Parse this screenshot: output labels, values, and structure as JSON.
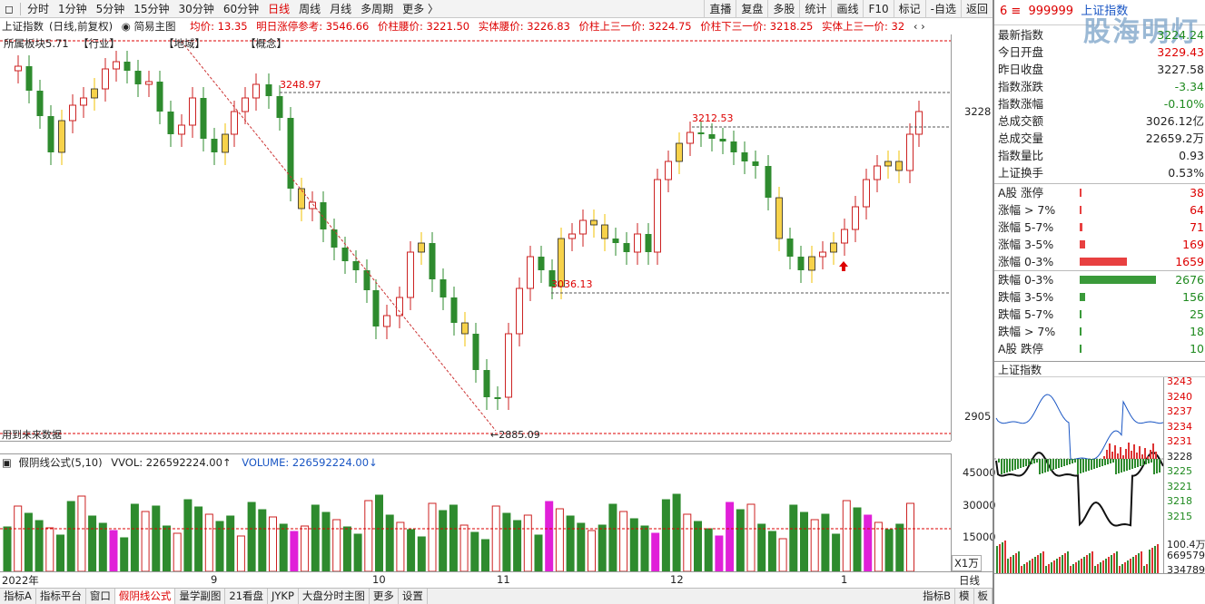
{
  "toolbar": {
    "left_icon": "square-icon",
    "tabs": [
      "分时",
      "1分钟",
      "5分钟",
      "15分钟",
      "30分钟",
      "60分钟",
      "日线",
      "周线",
      "月线",
      "多周期",
      "更多 〉"
    ],
    "active_tab": "日线",
    "right": [
      "直播",
      "复盘",
      "多股",
      "统计",
      "画线",
      "F10",
      "标记",
      "-自选",
      "返回"
    ]
  },
  "info": {
    "index_name": "上证指数",
    "period": "(日线,前复权)",
    "main_chart": "简易主图",
    "avg": "均价: 13.35",
    "next_limit": "明日涨停参考: 3546.66",
    "waist": "价柱腰价: 3221.50",
    "body_waist": "实体腰价: 3226.83",
    "upper": "价柱上三一价: 3224.75",
    "lower": "价柱下三一价: 3218.25",
    "body_upper": "实体上三一价: 32"
  },
  "chart_labels": {
    "top_left": "所属板块5.71",
    "industry": "【行业】",
    "region": "【地域】",
    "concept": "【概念】",
    "p1": "3248.97",
    "p2": "3212.53",
    "p3": "3036.13",
    "p4": "←2885.09",
    "bottom_left": "用到未来数据"
  },
  "y_axis": [
    "3228",
    "2905"
  ],
  "vol": {
    "name": "假阴线公式(5,10)",
    "vvol": "VVOL: 226592224.00↑",
    "volume": "VOLUME: 226592224.00↓",
    "axis": [
      "45000",
      "30000",
      "15000",
      "X1万"
    ]
  },
  "x_axis": [
    "2022年",
    "9",
    "10",
    "11",
    "12",
    "1",
    "日线"
  ],
  "bottom_tabs": [
    "指标A",
    "指标平台",
    "窗口",
    "假阴线公式",
    "量学副图",
    "21看盘",
    "JYKP",
    "大盘分时主图",
    "更多",
    "设置"
  ],
  "bottom_active": "假阴线公式",
  "bottom_right": [
    "指标B",
    "模",
    "板"
  ],
  "side": {
    "code": "999999",
    "name": "上证指数",
    "watermark": "股海明灯",
    "rows": [
      {
        "label": "最新指数",
        "value": "3224.24",
        "color": "#1f8a1f"
      },
      {
        "label": "今日开盘",
        "value": "3229.43",
        "color": "#d00"
      },
      {
        "label": "昨日收盘",
        "value": "3227.58",
        "color": "#222"
      },
      {
        "label": "指数涨跌",
        "value": "-3.34",
        "color": "#1f8a1f"
      },
      {
        "label": "指数涨幅",
        "value": "-0.10%",
        "color": "#1f8a1f"
      },
      {
        "label": "总成交额",
        "value": "3026.12亿",
        "color": "#222"
      },
      {
        "label": "总成交量",
        "value": "22659.2万",
        "color": "#222"
      },
      {
        "label": "指数量比",
        "value": "0.93",
        "color": "#222"
      },
      {
        "label": "上证换手",
        "value": "0.53%",
        "color": "#222"
      }
    ],
    "up_rows": [
      {
        "label": "A股 涨停",
        "value": "38",
        "frac": 0.01
      },
      {
        "label": "涨幅 > 7%",
        "value": "64",
        "frac": 0.01
      },
      {
        "label": "涨幅 5-7%",
        "value": "71",
        "frac": 0.04
      },
      {
        "label": "涨幅 3-5%",
        "value": "169",
        "frac": 0.07
      },
      {
        "label": "涨幅 0-3%",
        "value": "1659",
        "frac": 0.62
      }
    ],
    "down_rows": [
      {
        "label": "跌幅 0-3%",
        "value": "2676",
        "frac": 1.0
      },
      {
        "label": "跌幅 3-5%",
        "value": "156",
        "frac": 0.07
      },
      {
        "label": "跌幅 5-7%",
        "value": "25",
        "frac": 0.01
      },
      {
        "label": "跌幅 > 7%",
        "value": "18",
        "frac": 0.01
      },
      {
        "label": "A股 跌停",
        "value": "10",
        "frac": 0.01
      }
    ],
    "mini_title": "上证指数",
    "mini_axis": [
      "3243",
      "3240",
      "3237",
      "3234",
      "3231",
      "3228",
      "3225",
      "3221",
      "3218",
      "3215",
      "100.4万",
      "669579",
      "334789"
    ]
  }
}
